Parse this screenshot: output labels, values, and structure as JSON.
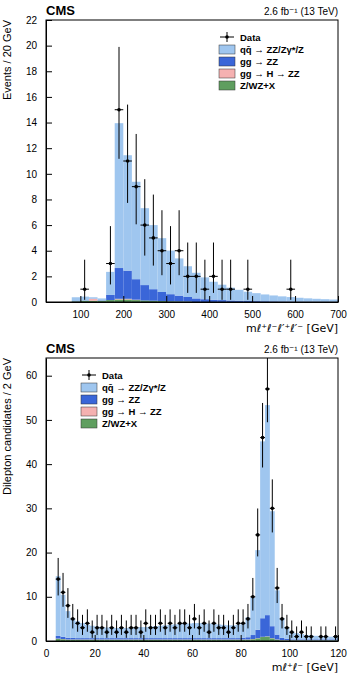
{
  "chart_data": [
    {
      "type": "histogram",
      "title": "CMS",
      "subtitle": "2.6 fb⁻¹ (13 TeV)",
      "x_label": "mℓ⁺ℓ⁻ℓ′⁺ℓ′⁻ [GeV]",
      "y_label": "Events / 20 GeV",
      "bins": [
        20,
        40,
        60,
        80,
        100,
        120,
        140,
        160,
        180,
        200,
        220,
        240,
        260,
        280,
        300,
        320,
        340,
        360,
        380,
        400,
        420,
        440,
        460,
        480,
        500,
        520,
        540,
        560,
        580,
        600,
        620,
        640,
        660,
        680,
        700
      ],
      "xlim": [
        20,
        700
      ],
      "xticks": [
        100,
        200,
        300,
        400,
        500,
        600,
        700
      ],
      "ylim": [
        0,
        22
      ],
      "yticks": [
        0,
        2,
        4,
        6,
        8,
        10,
        12,
        14,
        16,
        18,
        20,
        22
      ],
      "stacked": true,
      "legend": "top-right",
      "series": [
        {
          "name": "Data",
          "type": "scatter",
          "marker": "circle",
          "color": "#000000",
          "values": [
            null,
            null,
            null,
            null,
            1,
            null,
            null,
            3,
            15,
            11,
            9,
            6,
            5,
            4,
            3,
            4,
            2,
            2,
            1,
            2,
            1,
            1,
            null,
            1,
            null,
            null,
            null,
            null,
            1,
            null,
            null,
            null,
            null,
            null
          ],
          "error_low": [
            null,
            null,
            null,
            null,
            0.83,
            null,
            null,
            1.63,
            3.83,
            3.27,
            2.94,
            2.38,
            2.16,
            1.91,
            1.63,
            1.91,
            1.29,
            1.29,
            0.83,
            1.29,
            0.83,
            0.83,
            null,
            0.83,
            null,
            null,
            null,
            null,
            0.83,
            null,
            null,
            null,
            null,
            null
          ],
          "error_high": [
            null,
            null,
            null,
            null,
            2.3,
            null,
            null,
            2.92,
            4.9,
            4.4,
            4.11,
            3.58,
            3.38,
            3.16,
            2.92,
            3.16,
            2.64,
            2.64,
            2.3,
            2.64,
            2.3,
            2.3,
            null,
            2.3,
            null,
            null,
            null,
            null,
            2.3,
            null,
            null,
            null,
            null,
            null
          ]
        },
        {
          "name": "qq̄ → ZZ/Zγ*/Z",
          "type": "bar",
          "color": "#9fc6ef",
          "values": [
            0,
            0,
            0,
            0.3,
            0.3,
            0.1,
            0.15,
            1.8,
            11.3,
            9.0,
            7.6,
            6.0,
            5.0,
            4.2,
            3.4,
            2.9,
            2.4,
            2.0,
            1.7,
            1.4,
            1.2,
            1.0,
            0.85,
            0.72,
            0.62,
            0.53,
            0.46,
            0.4,
            0.35,
            0.3,
            0.26,
            0.23,
            0.2,
            0.18
          ]
        },
        {
          "name": "gg → ZZ",
          "type": "bar",
          "color": "#3a66d8",
          "values": [
            0,
            0,
            0,
            0.02,
            0.02,
            0.02,
            0.03,
            0.4,
            2.4,
            2.2,
            1.6,
            1.2,
            0.9,
            0.7,
            0.55,
            0.45,
            0.35,
            0.28,
            0.22,
            0.18,
            0.15,
            0.12,
            0.1,
            0.08,
            0.07,
            0.06,
            0.05,
            0.04,
            0.035,
            0.03,
            0.025,
            0.02,
            0.02,
            0.015
          ]
        },
        {
          "name": "gg → H → ZZ",
          "type": "bar",
          "color": "#f5b1b1",
          "values": [
            0,
            0,
            0,
            0,
            0,
            0.15,
            0,
            0,
            0.05,
            0.05,
            0.03,
            0,
            0,
            0,
            0,
            0,
            0,
            0,
            0,
            0,
            0,
            0,
            0,
            0,
            0,
            0,
            0,
            0,
            0,
            0,
            0,
            0,
            0,
            0
          ]
        },
        {
          "name": "Z/WZ+X",
          "type": "bar",
          "color": "#5f9e5f",
          "values": [
            0,
            0,
            0,
            0.05,
            0.1,
            0.1,
            0.1,
            0.15,
            0.2,
            0.2,
            0.15,
            0.12,
            0.1,
            0.08,
            0.06,
            0.05,
            0.04,
            0,
            0,
            0,
            0,
            0,
            0,
            0,
            0,
            0,
            0,
            0,
            0,
            0,
            0,
            0,
            0,
            0
          ]
        }
      ]
    },
    {
      "type": "histogram",
      "title": "CMS",
      "subtitle": "2.6 fb⁻¹ (13 TeV)",
      "x_label": "mℓ⁺ℓ⁻ [GeV]",
      "y_label": "Dilepton candidates / 2 GeV",
      "bins": [
        0,
        2,
        4,
        6,
        8,
        10,
        12,
        14,
        16,
        18,
        20,
        22,
        24,
        26,
        28,
        30,
        32,
        34,
        36,
        38,
        40,
        42,
        44,
        46,
        48,
        50,
        52,
        54,
        56,
        58,
        60,
        62,
        64,
        66,
        68,
        70,
        72,
        74,
        76,
        78,
        80,
        82,
        84,
        86,
        88,
        90,
        92,
        94,
        96,
        98,
        100,
        102,
        104,
        106,
        108,
        110,
        112,
        114,
        116,
        118,
        120
      ],
      "xlim": [
        0,
        120
      ],
      "xticks": [
        0,
        20,
        40,
        60,
        80,
        100,
        120
      ],
      "ylim": [
        0,
        64
      ],
      "yticks": [
        0,
        10,
        20,
        30,
        40,
        50,
        60
      ],
      "stacked": true,
      "legend": "top-left",
      "series": [
        {
          "name": "Data",
          "type": "scatter",
          "marker": "circle",
          "color": "#000000",
          "values": [
            null,
            null,
            14,
            11,
            8,
            5,
            4,
            3,
            4,
            2,
            3,
            3,
            2,
            3,
            2,
            3,
            2,
            3,
            3,
            2,
            4,
            3,
            3,
            4,
            3,
            4,
            3,
            4,
            4,
            3,
            5,
            3,
            4,
            2,
            4,
            3,
            3,
            2,
            3,
            4,
            4,
            5,
            10,
            24,
            46,
            57,
            30,
            12,
            5,
            3,
            2,
            1,
            2,
            1,
            1,
            null,
            1,
            1,
            null,
            1
          ],
          "error_low": [
            null,
            null,
            3.7,
            3.27,
            2.77,
            2.16,
            1.91,
            1.63,
            1.91,
            1.29,
            1.63,
            1.63,
            1.29,
            1.63,
            1.29,
            1.63,
            1.29,
            1.63,
            1.63,
            1.29,
            1.91,
            1.63,
            1.63,
            1.91,
            1.63,
            1.91,
            1.63,
            1.91,
            1.91,
            1.63,
            2.16,
            1.63,
            1.91,
            1.29,
            1.91,
            1.63,
            1.63,
            1.29,
            1.63,
            1.91,
            1.91,
            2.16,
            3.11,
            4.87,
            6.76,
            7.53,
            5.45,
            3.42,
            2.16,
            1.63,
            1.29,
            0.83,
            1.29,
            0.83,
            0.83,
            null,
            0.83,
            0.83,
            null,
            0.83
          ],
          "error_high": [
            null,
            null,
            4.78,
            4.4,
            3.96,
            3.38,
            3.16,
            2.92,
            3.16,
            2.64,
            2.92,
            2.92,
            2.64,
            2.92,
            2.64,
            2.92,
            2.64,
            2.92,
            2.92,
            2.64,
            3.16,
            2.92,
            2.92,
            3.16,
            2.92,
            3.16,
            2.92,
            3.16,
            3.16,
            2.92,
            3.38,
            2.92,
            3.16,
            2.64,
            3.16,
            2.92,
            2.92,
            2.64,
            2.92,
            3.16,
            3.16,
            3.38,
            4.26,
            5.97,
            7.83,
            8.6,
            6.55,
            4.53,
            3.38,
            2.92,
            2.64,
            2.3,
            2.64,
            2.3,
            2.3,
            null,
            2.3,
            2.3,
            null,
            2.3
          ]
        },
        {
          "name": "qq̄ → ZZ/Zγ*/Z",
          "type": "bar",
          "color": "#9fc6ef",
          "values": [
            0,
            0,
            13.5,
            9.5,
            6,
            4.4,
            3.8,
            3.4,
            3.0,
            2.8,
            2.6,
            2.5,
            2.4,
            2.4,
            2.3,
            2.3,
            2.3,
            2.4,
            2.4,
            2.5,
            2.5,
            2.6,
            2.7,
            2.8,
            2.9,
            3.0,
            3.1,
            3.2,
            3.3,
            3.3,
            3.4,
            3.4,
            3.3,
            3.3,
            3.2,
            3.1,
            3.0,
            2.9,
            2.9,
            3.0,
            3.4,
            4.5,
            8.5,
            18,
            40,
            47.5,
            26,
            10,
            4.5,
            2.6,
            1.8,
            1.4,
            1.2,
            1.0,
            0.9,
            0.8,
            0.7,
            0.65,
            0.6,
            0.55
          ]
        },
        {
          "name": "gg → ZZ",
          "type": "bar",
          "color": "#3a66d8",
          "values": [
            0,
            0,
            0.6,
            0.5,
            0.4,
            0.35,
            0.3,
            0.3,
            0.3,
            0.3,
            0.3,
            0.3,
            0.3,
            0.3,
            0.3,
            0.3,
            0.3,
            0.3,
            0.3,
            0.3,
            0.3,
            0.3,
            0.3,
            0.3,
            0.3,
            0.3,
            0.3,
            0.3,
            0.3,
            0.3,
            0.3,
            0.3,
            0.3,
            0.3,
            0.3,
            0.3,
            0.3,
            0.3,
            0.3,
            0.3,
            0.4,
            0.5,
            0.9,
            1.9,
            4.2,
            4.8,
            2.7,
            1.1,
            0.5,
            0.3,
            0.2,
            0.2,
            0.2,
            0.2,
            0.2,
            0.2,
            0.2,
            0.2,
            0.2,
            0.2
          ]
        },
        {
          "name": "gg → H → ZZ",
          "type": "bar",
          "color": "#f5b1b1",
          "values": [
            0,
            0,
            0.05,
            0.05,
            0.05,
            0.05,
            0.05,
            0.05,
            0.05,
            0.05,
            0.05,
            0.05,
            0.05,
            0.05,
            0.05,
            0.05,
            0.05,
            0.05,
            0.05,
            0.05,
            0.05,
            0.05,
            0.05,
            0.05,
            0.05,
            0.05,
            0.05,
            0.05,
            0.05,
            0.05,
            0.05,
            0.05,
            0.05,
            0.05,
            0.05,
            0.05,
            0.05,
            0.05,
            0.05,
            0.05,
            0.05,
            0.05,
            0.05,
            0.05,
            0.05,
            0.05,
            0.05,
            0.05,
            0.05,
            0.05,
            0.02,
            0.02,
            0.02,
            0.02,
            0.02,
            0.02,
            0.02,
            0.02,
            0.02,
            0.02
          ]
        },
        {
          "name": "Z/WZ+X",
          "type": "bar",
          "color": "#5f9e5f",
          "values": [
            0,
            0,
            0.5,
            0.4,
            0.3,
            0.3,
            0.3,
            0.3,
            0.3,
            0.3,
            0.3,
            0.3,
            0.3,
            0.3,
            0.3,
            0.3,
            0.3,
            0.3,
            0.3,
            0.3,
            0.3,
            0.3,
            0.3,
            0.3,
            0.3,
            0.3,
            0.3,
            0.3,
            0.3,
            0.3,
            0.3,
            0.3,
            0.3,
            0.3,
            0.3,
            0.3,
            0.3,
            0.3,
            0.3,
            0.3,
            0.3,
            0.3,
            0.4,
            0.6,
            0.9,
            1.0,
            0.6,
            0.3,
            0.15,
            0.15,
            0.15,
            0.15,
            0.15,
            0.15,
            0.15,
            0.15,
            0.15,
            0.15,
            0.15,
            0.15
          ]
        }
      ]
    }
  ]
}
